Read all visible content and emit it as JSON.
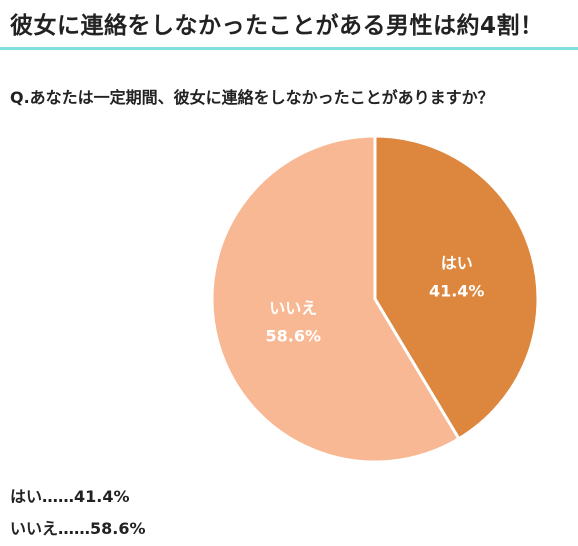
{
  "headline": "彼女に連絡をしなかったことがある男性は約4割！",
  "question": "Q.あなたは一定期間、彼女に連絡をしなかったことがありますか？",
  "colors": {
    "rule": "#7fe0dc",
    "yes": "#dd863e",
    "no": "#f8b893",
    "divider": "#ffffff"
  },
  "chart_data": {
    "type": "pie",
    "title": "",
    "slices": [
      {
        "label": "はい",
        "value": 41.4,
        "value_label": "41.4%",
        "color": "#dd863e"
      },
      {
        "label": "いいえ",
        "value": 58.6,
        "value_label": "58.6%",
        "color": "#f8b893"
      }
    ]
  },
  "summary": [
    "はい……41.4%",
    "いいえ……58.6%"
  ]
}
